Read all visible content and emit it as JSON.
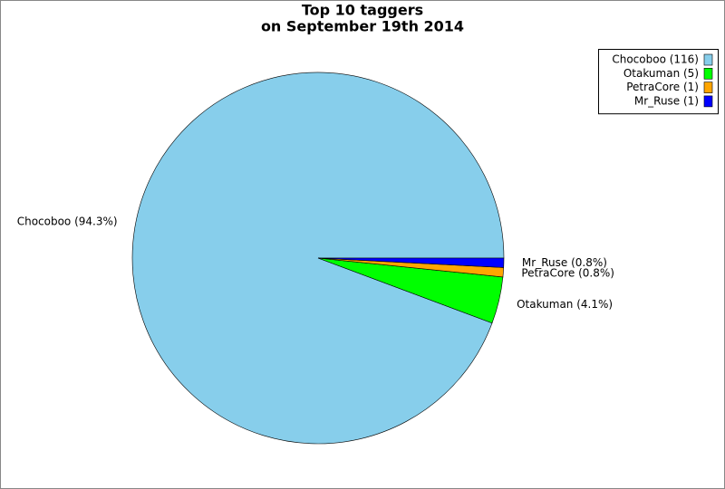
{
  "chart_data": {
    "type": "pie",
    "title": "Top 10 taggers",
    "subtitle": "on September 19th 2014",
    "values": [
      116,
      5,
      1,
      1
    ],
    "value_labels": [
      "Chocoboo (94.3%)",
      "Otakuman (4.1%)",
      "PetraCore (0.8%)",
      "Mr_Ruse (0.8%)"
    ],
    "legend_labels": [
      "Chocoboo (116)",
      "Otakuman (5)",
      "PetraCore (1)",
      "Mr_Ruse (1)"
    ],
    "colors": [
      "#87ceeb",
      "#00ff00",
      "#ffa500",
      "#0000ff"
    ],
    "legend": "top-right"
  }
}
